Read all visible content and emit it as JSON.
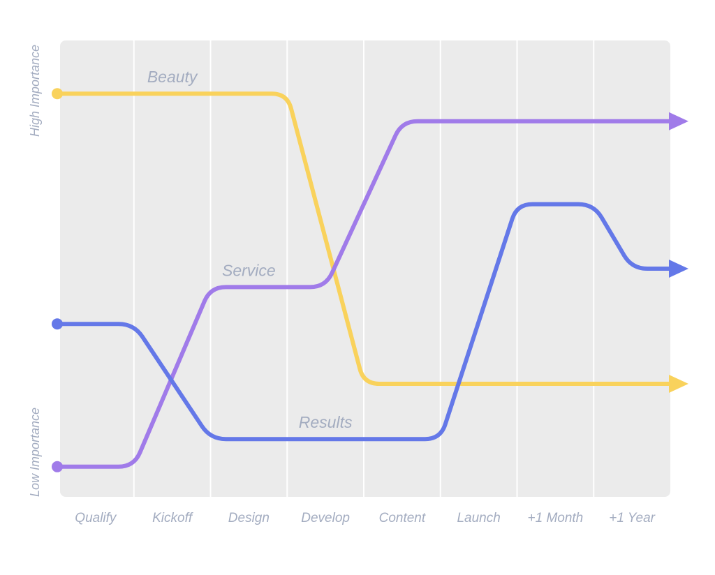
{
  "chart_data": {
    "type": "line",
    "categories": [
      "Qualify",
      "Kickoff",
      "Design",
      "Develop",
      "Content",
      "Launch",
      "+1 Month",
      "+1 Year"
    ],
    "y_levels": {
      "high": "High Importance",
      "low": "Low Importance"
    },
    "ylim": [
      0,
      1
    ],
    "grid": true,
    "series": [
      {
        "name": "Beauty",
        "color": "#f9d25c",
        "points": [
          [
            0,
            0.88
          ],
          [
            3,
            0.88
          ],
          [
            4,
            0.25
          ],
          [
            8,
            0.25
          ]
        ]
      },
      {
        "name": "Service",
        "color": "#a07be9",
        "points": [
          [
            0,
            0.07
          ],
          [
            1,
            0.07
          ],
          [
            2,
            0.46
          ],
          [
            3.5,
            0.46
          ],
          [
            4.5,
            0.82
          ],
          [
            8,
            0.82
          ]
        ]
      },
      {
        "name": "Results",
        "color": "#6478e8",
        "points": [
          [
            0,
            0.38
          ],
          [
            1,
            0.38
          ],
          [
            2,
            0.13
          ],
          [
            5,
            0.13
          ],
          [
            6,
            0.64
          ],
          [
            7,
            0.64
          ],
          [
            7.5,
            0.5
          ],
          [
            8,
            0.5
          ]
        ]
      }
    ]
  }
}
